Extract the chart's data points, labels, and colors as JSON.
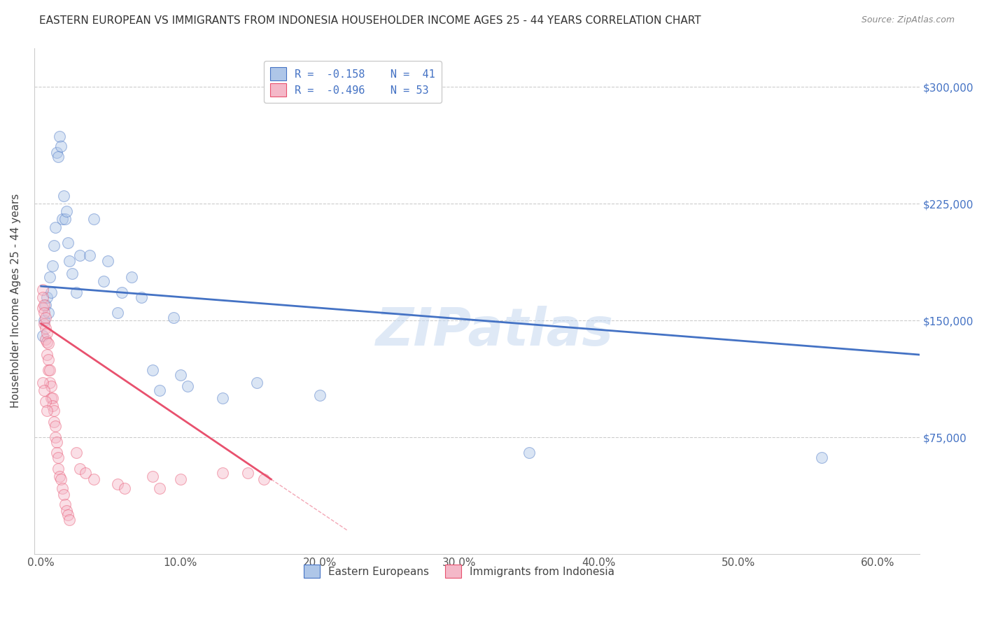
{
  "title": "EASTERN EUROPEAN VS IMMIGRANTS FROM INDONESIA HOUSEHOLDER INCOME AGES 25 - 44 YEARS CORRELATION CHART",
  "source": "Source: ZipAtlas.com",
  "ylabel": "Householder Income Ages 25 - 44 years",
  "xlabel_ticks": [
    "0.0%",
    "10.0%",
    "20.0%",
    "30.0%",
    "40.0%",
    "50.0%",
    "60.0%"
  ],
  "xlabel_vals": [
    0.0,
    0.1,
    0.2,
    0.3,
    0.4,
    0.5,
    0.6
  ],
  "ytick_labels": [
    "$75,000",
    "$150,000",
    "$225,000",
    "$300,000"
  ],
  "ytick_vals": [
    75000,
    150000,
    225000,
    300000
  ],
  "ylim": [
    0,
    325000
  ],
  "xlim": [
    -0.005,
    0.63
  ],
  "legend_entries": [
    {
      "label": "R =  -0.158    N =  41",
      "color": "#aec6e8"
    },
    {
      "label": "R =  -0.496    N = 53",
      "color": "#f4b8c8"
    }
  ],
  "legend_bottom": [
    {
      "label": "Eastern Europeans",
      "color": "#aec6e8"
    },
    {
      "label": "Immigrants from Indonesia",
      "color": "#f4b8c8"
    }
  ],
  "blue_scatter": [
    [
      0.001,
      140000
    ],
    [
      0.002,
      150000
    ],
    [
      0.003,
      160000
    ],
    [
      0.004,
      165000
    ],
    [
      0.005,
      155000
    ],
    [
      0.006,
      178000
    ],
    [
      0.007,
      168000
    ],
    [
      0.008,
      185000
    ],
    [
      0.009,
      198000
    ],
    [
      0.01,
      210000
    ],
    [
      0.011,
      258000
    ],
    [
      0.012,
      255000
    ],
    [
      0.013,
      268000
    ],
    [
      0.014,
      262000
    ],
    [
      0.015,
      215000
    ],
    [
      0.016,
      230000
    ],
    [
      0.017,
      215000
    ],
    [
      0.018,
      220000
    ],
    [
      0.019,
      200000
    ],
    [
      0.02,
      188000
    ],
    [
      0.022,
      180000
    ],
    [
      0.025,
      168000
    ],
    [
      0.028,
      192000
    ],
    [
      0.035,
      192000
    ],
    [
      0.038,
      215000
    ],
    [
      0.045,
      175000
    ],
    [
      0.048,
      188000
    ],
    [
      0.055,
      155000
    ],
    [
      0.058,
      168000
    ],
    [
      0.065,
      178000
    ],
    [
      0.072,
      165000
    ],
    [
      0.08,
      118000
    ],
    [
      0.085,
      105000
    ],
    [
      0.095,
      152000
    ],
    [
      0.1,
      115000
    ],
    [
      0.105,
      108000
    ],
    [
      0.13,
      100000
    ],
    [
      0.155,
      110000
    ],
    [
      0.2,
      102000
    ],
    [
      0.35,
      65000
    ],
    [
      0.56,
      62000
    ]
  ],
  "pink_scatter": [
    [
      0.001,
      170000
    ],
    [
      0.001,
      165000
    ],
    [
      0.001,
      158000
    ],
    [
      0.002,
      160000
    ],
    [
      0.002,
      155000
    ],
    [
      0.002,
      148000
    ],
    [
      0.003,
      152000
    ],
    [
      0.003,
      145000
    ],
    [
      0.003,
      138000
    ],
    [
      0.004,
      142000
    ],
    [
      0.004,
      136000
    ],
    [
      0.004,
      128000
    ],
    [
      0.005,
      135000
    ],
    [
      0.005,
      125000
    ],
    [
      0.005,
      118000
    ],
    [
      0.006,
      118000
    ],
    [
      0.006,
      110000
    ],
    [
      0.007,
      108000
    ],
    [
      0.007,
      100000
    ],
    [
      0.008,
      100000
    ],
    [
      0.008,
      95000
    ],
    [
      0.009,
      92000
    ],
    [
      0.009,
      85000
    ],
    [
      0.01,
      82000
    ],
    [
      0.01,
      75000
    ],
    [
      0.011,
      72000
    ],
    [
      0.011,
      65000
    ],
    [
      0.012,
      62000
    ],
    [
      0.012,
      55000
    ],
    [
      0.013,
      50000
    ],
    [
      0.014,
      48000
    ],
    [
      0.015,
      42000
    ],
    [
      0.016,
      38000
    ],
    [
      0.017,
      32000
    ],
    [
      0.018,
      28000
    ],
    [
      0.019,
      25000
    ],
    [
      0.02,
      22000
    ],
    [
      0.025,
      65000
    ],
    [
      0.028,
      55000
    ],
    [
      0.032,
      52000
    ],
    [
      0.038,
      48000
    ],
    [
      0.055,
      45000
    ],
    [
      0.06,
      42000
    ],
    [
      0.08,
      50000
    ],
    [
      0.085,
      42000
    ],
    [
      0.1,
      48000
    ],
    [
      0.13,
      52000
    ],
    [
      0.148,
      52000
    ],
    [
      0.16,
      48000
    ],
    [
      0.001,
      110000
    ],
    [
      0.002,
      105000
    ],
    [
      0.003,
      98000
    ],
    [
      0.004,
      92000
    ]
  ],
  "blue_line": [
    [
      0.0,
      172000
    ],
    [
      0.63,
      128000
    ]
  ],
  "pink_line": [
    [
      0.0,
      148000
    ],
    [
      0.165,
      48000
    ]
  ],
  "pink_line_dash": [
    [
      0.165,
      48000
    ],
    [
      0.22,
      15000
    ]
  ],
  "blue_line_color": "#4472c4",
  "pink_line_color": "#e8516e",
  "scatter_alpha": 0.45,
  "scatter_size": 130,
  "background_color": "#ffffff",
  "grid_color": "#cccccc",
  "title_fontsize": 11,
  "axis_label_fontsize": 11,
  "tick_fontsize": 11,
  "watermark": "ZIPatlas",
  "watermark_color": "#c5d8f0"
}
